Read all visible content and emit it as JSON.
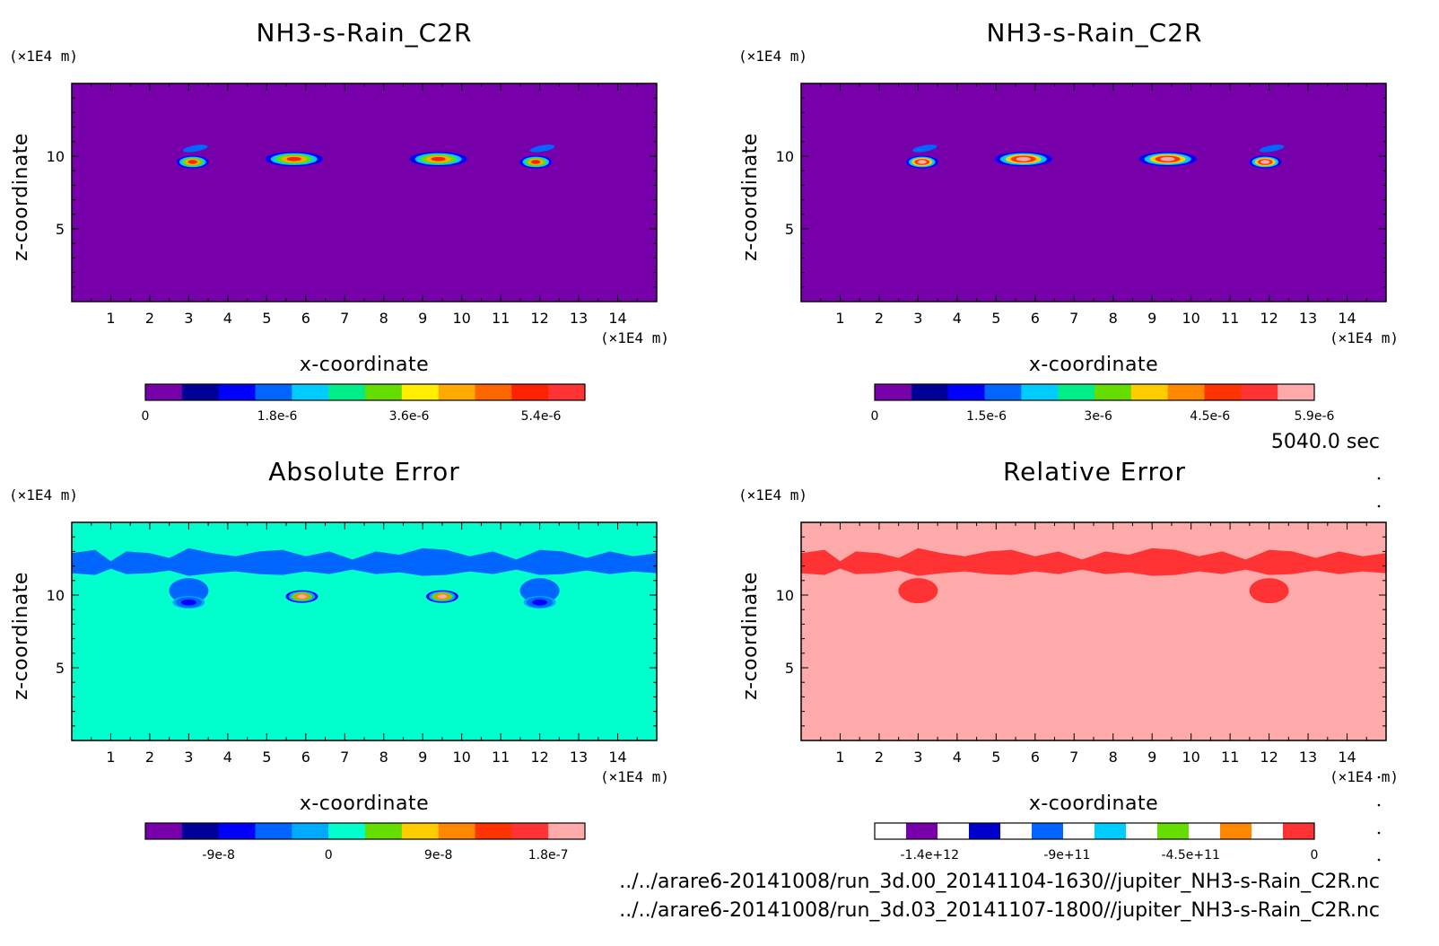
{
  "time_label": "5040.0 sec",
  "file_paths": [
    "../../arare6-20141008/run_3d.00_20141104-1630//jupiter_NH3-s-Rain_C2R.nc",
    "../../arare6-20141008/run_3d.03_20141107-1800//jupiter_NH3-s-Rain_C2R.nc"
  ],
  "chart_data": [
    {
      "type": "heatmap",
      "title": "NH3-s-Rain_C2R",
      "xlabel": "x-coordinate",
      "ylabel": "z-coordinate",
      "x_unit": "(×1E4 m)",
      "y_unit": "(×1E4 m)",
      "xlim": [
        0,
        15
      ],
      "ylim": [
        0,
        15
      ],
      "x_ticks": [
        "1",
        "2",
        "3",
        "4",
        "5",
        "6",
        "7",
        "8",
        "9",
        "10",
        "11",
        "12",
        "13",
        "14"
      ],
      "y_ticks": [
        "5",
        "10"
      ],
      "background_color": "#7700aa",
      "features": [
        {
          "kind": "blob",
          "x": 3.1,
          "z": 9.6,
          "max": 5.4e-06
        },
        {
          "kind": "cap",
          "x": 3.1,
          "z": 10.5,
          "max": 1.8e-06
        },
        {
          "kind": "blob",
          "x": 5.7,
          "z": 9.8,
          "max": 5.4e-06
        },
        {
          "kind": "blob",
          "x": 9.4,
          "z": 9.8,
          "max": 5.4e-06
        },
        {
          "kind": "blob",
          "x": 11.9,
          "z": 9.6,
          "max": 5.4e-06
        },
        {
          "kind": "cap",
          "x": 12.0,
          "z": 10.5,
          "max": 1.8e-06
        }
      ],
      "colorbar": {
        "colors": [
          "#7700aa",
          "#000099",
          "#0000ff",
          "#0066ff",
          "#00ccff",
          "#00ee88",
          "#66dd00",
          "#ffee00",
          "#ffaa00",
          "#ff6600",
          "#ff2200",
          "#ff3333"
        ],
        "tick_labels": [
          "0",
          "1.8e-6",
          "3.6e-6",
          "5.4e-6"
        ],
        "tick_values": [
          0,
          1.8e-06,
          3.6e-06,
          5.4e-06
        ],
        "range": [
          0,
          6e-06
        ]
      }
    },
    {
      "type": "heatmap",
      "title": "NH3-s-Rain_C2R",
      "xlabel": "x-coordinate",
      "ylabel": "z-coordinate",
      "x_unit": "(×1E4 m)",
      "y_unit": "(×1E4 m)",
      "xlim": [
        0,
        15
      ],
      "ylim": [
        0,
        15
      ],
      "x_ticks": [
        "1",
        "2",
        "3",
        "4",
        "5",
        "6",
        "7",
        "8",
        "9",
        "10",
        "11",
        "12",
        "13",
        "14"
      ],
      "y_ticks": [
        "5",
        "10"
      ],
      "background_color": "#7700aa",
      "features": [
        {
          "kind": "blob",
          "x": 3.1,
          "z": 9.6,
          "max": 5.9e-06
        },
        {
          "kind": "cap",
          "x": 3.1,
          "z": 10.5,
          "max": 1.5e-06
        },
        {
          "kind": "blob",
          "x": 5.7,
          "z": 9.8,
          "max": 5.9e-06
        },
        {
          "kind": "blob",
          "x": 9.4,
          "z": 9.8,
          "max": 5.9e-06
        },
        {
          "kind": "blob",
          "x": 11.9,
          "z": 9.6,
          "max": 5.9e-06
        },
        {
          "kind": "cap",
          "x": 12.0,
          "z": 10.5,
          "max": 1.5e-06
        }
      ],
      "colorbar": {
        "colors": [
          "#7700aa",
          "#000099",
          "#0000ff",
          "#0066ff",
          "#00ccff",
          "#00ee88",
          "#66dd00",
          "#ffcc00",
          "#ff8800",
          "#ff3300",
          "#ff3333",
          "#ffaaaa"
        ],
        "tick_labels": [
          "0",
          "1.5e-6",
          "3e-6",
          "4.5e-6",
          "5.9e-6"
        ],
        "tick_values": [
          0,
          1.5e-06,
          3e-06,
          4.5e-06,
          5.9e-06
        ],
        "range": [
          0,
          5.9e-06
        ]
      }
    },
    {
      "type": "heatmap",
      "title": "Absolute Error",
      "xlabel": "x-coordinate",
      "ylabel": "z-coordinate",
      "x_unit": "(×1E4 m)",
      "y_unit": "(×1E4 m)",
      "xlim": [
        0,
        15
      ],
      "ylim": [
        0,
        15
      ],
      "x_ticks": [
        "1",
        "2",
        "3",
        "4",
        "5",
        "6",
        "7",
        "8",
        "9",
        "10",
        "11",
        "12",
        "13",
        "14"
      ],
      "y_ticks": [
        "5",
        "10"
      ],
      "background_color": "#00ffcc",
      "features": [
        {
          "kind": "band",
          "z": 12.0,
          "value": -4e-08
        },
        {
          "kind": "blob",
          "x": 5.9,
          "z": 9.9,
          "max": 1.8e-07
        },
        {
          "kind": "blob",
          "x": 9.5,
          "z": 9.9,
          "max": 1.8e-07
        },
        {
          "kind": "blob",
          "x": 3.0,
          "z": 9.5,
          "max": -9e-08
        },
        {
          "kind": "blob",
          "x": 12.0,
          "z": 9.5,
          "max": -9e-08
        }
      ],
      "colorbar": {
        "colors": [
          "#7700aa",
          "#000099",
          "#0000ff",
          "#0066ff",
          "#00aaff",
          "#00ffcc",
          "#66dd00",
          "#ffcc00",
          "#ff8800",
          "#ff3300",
          "#ff3333",
          "#ffaaaa"
        ],
        "tick_labels": [
          "-9e-8",
          "0",
          "9e-8",
          "1.8e-7"
        ],
        "tick_values": [
          -9e-08,
          0,
          9e-08,
          1.8e-07
        ],
        "range": [
          -1.5e-07,
          2.1e-07
        ]
      }
    },
    {
      "type": "heatmap",
      "title": "Relative Error",
      "xlabel": "x-coordinate",
      "ylabel": "z-coordinate",
      "x_unit": "(×1E4 m)",
      "y_unit": "(×1E4 m)",
      "xlim": [
        0,
        15
      ],
      "ylim": [
        0,
        15
      ],
      "x_ticks": [
        "1",
        "2",
        "3",
        "4",
        "5",
        "6",
        "7",
        "8",
        "9",
        "10",
        "11",
        "12",
        "13",
        "14"
      ],
      "y_ticks": [
        "5",
        "10"
      ],
      "background_color": "#ffaaaa",
      "features": [
        {
          "kind": "band",
          "z": 12.0,
          "value": -10000000000.0
        }
      ],
      "colorbar": {
        "colors": [
          "#ffffff",
          "#7700aa",
          "#ffffff",
          "#0000cc",
          "#ffffff",
          "#0066ff",
          "#ffffff",
          "#00ccff",
          "#ffffff",
          "#66dd00",
          "#ffffff",
          "#ff8800",
          "#ffffff",
          "#ff3333"
        ],
        "tick_labels": [
          "-1.4e+12",
          "-9e+11",
          "-4.5e+11",
          "0"
        ],
        "tick_values": [
          -1400000000000.0,
          -900000000000.0,
          -450000000000.0,
          0
        ],
        "range": [
          -1600000000000.0,
          0
        ]
      }
    }
  ]
}
